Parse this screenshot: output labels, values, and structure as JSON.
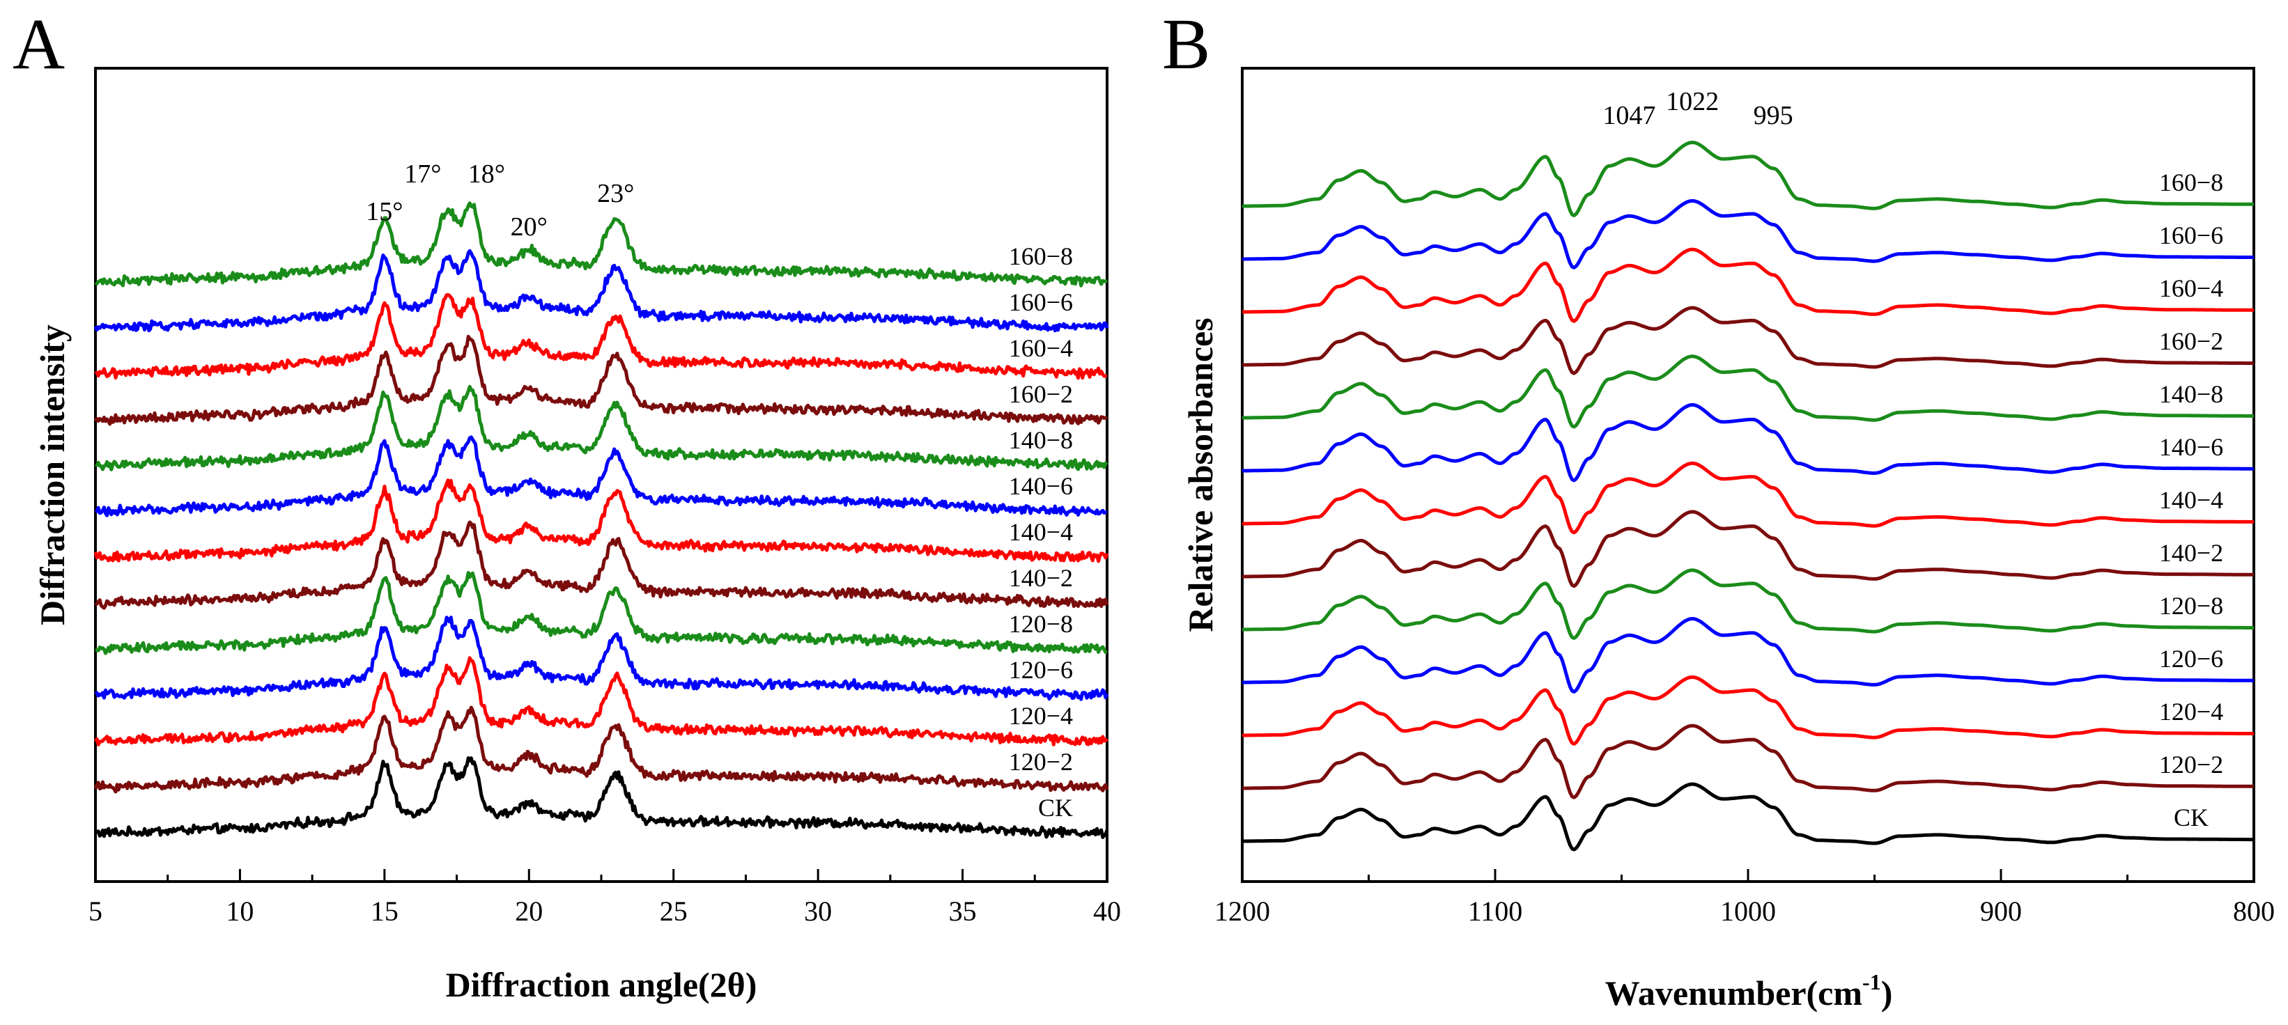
{
  "figure": {
    "panels": [
      "A",
      "B"
    ]
  },
  "chart_data": [
    {
      "panel": "A",
      "type": "line",
      "title": "",
      "xlabel": "Diffraction angle(2θ)",
      "ylabel": "Diffraction intensity",
      "xlim": [
        5,
        40
      ],
      "xticks": [
        "5",
        "10",
        "15",
        "20",
        "25",
        "30",
        "35",
        "40"
      ],
      "grid": false,
      "peak_labels": [
        {
          "x": 15,
          "text": "15°"
        },
        {
          "x": 17,
          "text": "17°"
        },
        {
          "x": 18,
          "text": "18°"
        },
        {
          "x": 20,
          "text": "20°"
        },
        {
          "x": 23,
          "text": "23°"
        }
      ],
      "series": [
        {
          "name": "CK",
          "color": "#000000",
          "offset": 0.0
        },
        {
          "name": "120−2",
          "color": "#7b0c0c",
          "offset": 1.0
        },
        {
          "name": "120−4",
          "color": "#ff0000",
          "offset": 2.0
        },
        {
          "name": "120−6",
          "color": "#0000ff",
          "offset": 3.0
        },
        {
          "name": "120−8",
          "color": "#1a8c1a",
          "offset": 4.0
        },
        {
          "name": "140−2",
          "color": "#7b0c0c",
          "offset": 5.0
        },
        {
          "name": "140−4",
          "color": "#ff0000",
          "offset": 6.0
        },
        {
          "name": "140−6",
          "color": "#0000ff",
          "offset": 7.0
        },
        {
          "name": "140−8",
          "color": "#1a8c1a",
          "offset": 8.0
        },
        {
          "name": "160−2",
          "color": "#7b0c0c",
          "offset": 9.0
        },
        {
          "name": "160−4",
          "color": "#ff0000",
          "offset": 10.0
        },
        {
          "name": "160−6",
          "color": "#0000ff",
          "offset": 11.0
        },
        {
          "name": "160−8",
          "color": "#1a8c1a",
          "offset": 12.0
        }
      ],
      "profile": {
        "baseline": [
          [
            5,
            0.0
          ],
          [
            10,
            0.08
          ],
          [
            13,
            0.22
          ],
          [
            14.5,
            0.35
          ],
          [
            16.2,
            0.4
          ],
          [
            21.5,
            0.35
          ],
          [
            22.2,
            0.25
          ],
          [
            25,
            0.22
          ],
          [
            30,
            0.2
          ],
          [
            40,
            0.0
          ]
        ],
        "peaks": [
          {
            "center": 15.0,
            "height": 0.95,
            "width": 0.35
          },
          {
            "center": 17.2,
            "height": 1.0,
            "width": 0.45
          },
          {
            "center": 18.0,
            "height": 1.05,
            "width": 0.35
          },
          {
            "center": 20.0,
            "height": 0.25,
            "width": 0.4
          },
          {
            "center": 23.0,
            "height": 0.95,
            "width": 0.55
          }
        ],
        "noise": 0.07
      }
    },
    {
      "panel": "B",
      "type": "line",
      "title": "",
      "xlabel_main": "Wavenumber(cm",
      "xlabel_sup": "-1",
      "xlabel_end": ")",
      "ylabel": "Relative absorbances",
      "xlim": [
        1200,
        800
      ],
      "xticks": [
        "1200",
        "1100",
        "1000",
        "900",
        "800"
      ],
      "grid": false,
      "peak_labels": [
        {
          "x": 1047,
          "text": "1047"
        },
        {
          "x": 1022,
          "text": "1022"
        },
        {
          "x": 995,
          "text": "995"
        }
      ],
      "series": [
        {
          "name": "CK",
          "color": "#000000",
          "offset": 0.0
        },
        {
          "name": "120−2",
          "color": "#7b0c0c",
          "offset": 1.0
        },
        {
          "name": "120−4",
          "color": "#ff0000",
          "offset": 2.0
        },
        {
          "name": "120−6",
          "color": "#0000ff",
          "offset": 3.0
        },
        {
          "name": "120−8",
          "color": "#1a8c1a",
          "offset": 4.0
        },
        {
          "name": "140−2",
          "color": "#7b0c0c",
          "offset": 5.0
        },
        {
          "name": "140−4",
          "color": "#ff0000",
          "offset": 6.0
        },
        {
          "name": "140−6",
          "color": "#0000ff",
          "offset": 7.0
        },
        {
          "name": "140−8",
          "color": "#1a8c1a",
          "offset": 8.0
        },
        {
          "name": "160−2",
          "color": "#7b0c0c",
          "offset": 9.0
        },
        {
          "name": "160−4",
          "color": "#ff0000",
          "offset": 10.0
        },
        {
          "name": "160−6",
          "color": "#0000ff",
          "offset": 11.0
        },
        {
          "name": "160−8",
          "color": "#1a8c1a",
          "offset": 12.0
        }
      ],
      "profile": {
        "points": [
          [
            1200,
            0.0
          ],
          [
            1185,
            0.01
          ],
          [
            1170,
            0.15
          ],
          [
            1162,
            0.55
          ],
          [
            1153,
            0.75
          ],
          [
            1145,
            0.5
          ],
          [
            1136,
            0.1
          ],
          [
            1130,
            0.15
          ],
          [
            1124,
            0.3
          ],
          [
            1116,
            0.2
          ],
          [
            1106,
            0.35
          ],
          [
            1098,
            0.15
          ],
          [
            1092,
            0.35
          ],
          [
            1080,
            1.05
          ],
          [
            1075,
            0.6
          ],
          [
            1069,
            -0.2
          ],
          [
            1063,
            0.25
          ],
          [
            1055,
            0.85
          ],
          [
            1047,
            1.0
          ],
          [
            1037,
            0.85
          ],
          [
            1022,
            1.35
          ],
          [
            1010,
            1.0
          ],
          [
            998,
            1.05
          ],
          [
            990,
            0.8
          ],
          [
            980,
            0.15
          ],
          [
            972,
            0.02
          ],
          [
            960,
            0.0
          ],
          [
            950,
            -0.05
          ],
          [
            940,
            0.12
          ],
          [
            925,
            0.15
          ],
          [
            910,
            0.1
          ],
          [
            895,
            0.04
          ],
          [
            880,
            -0.03
          ],
          [
            870,
            0.05
          ],
          [
            860,
            0.13
          ],
          [
            850,
            0.08
          ],
          [
            835,
            0.05
          ],
          [
            800,
            0.04
          ]
        ]
      }
    }
  ]
}
